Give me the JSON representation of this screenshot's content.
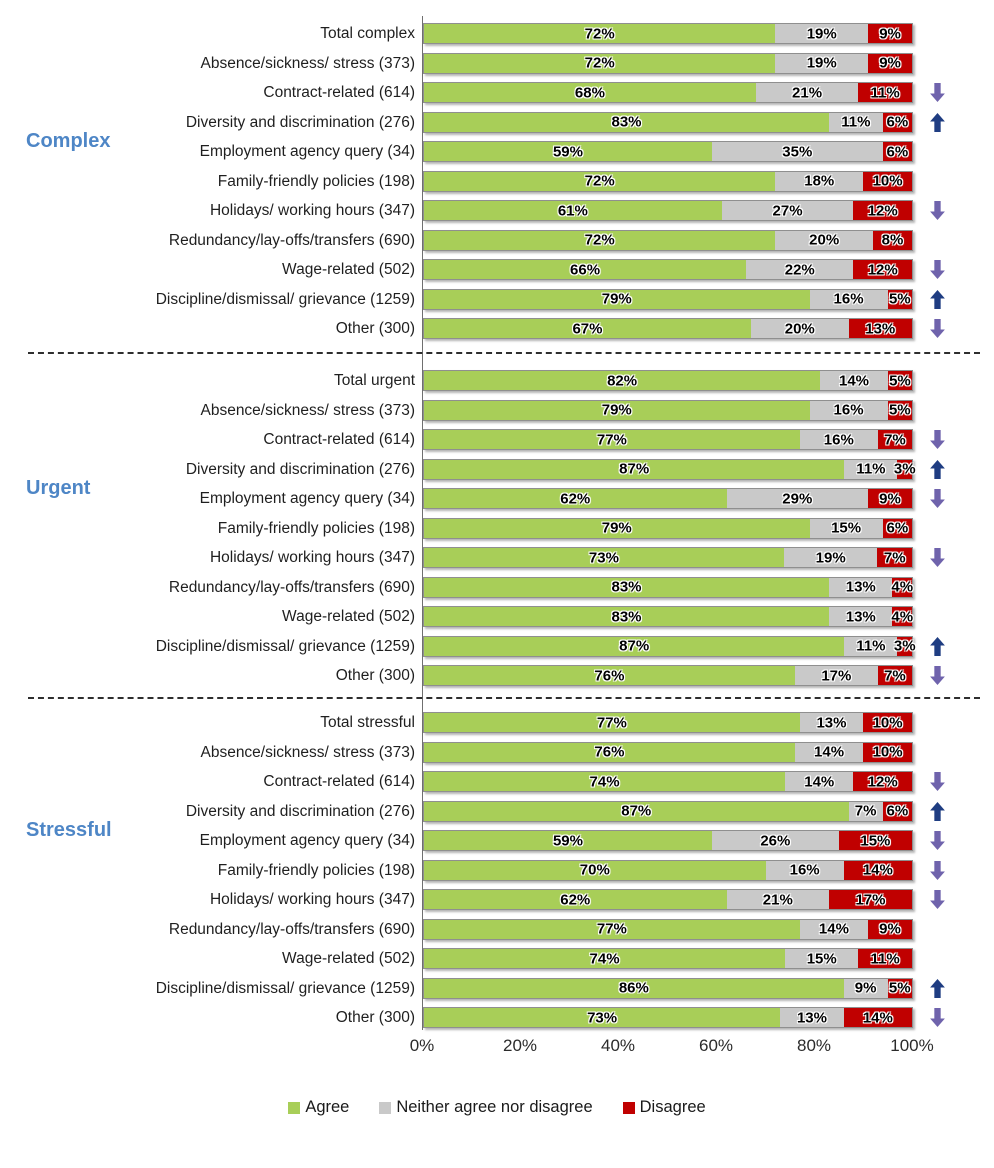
{
  "colors": {
    "agree": "#A8CE58",
    "neither": "#C9C9C9",
    "disagree": "#C00000",
    "arrow_up": "#1F3D82",
    "arrow_down": "#6F63AC",
    "section_label": "#4E86C6"
  },
  "legend": [
    {
      "label": "Agree",
      "color_key": "agree"
    },
    {
      "label": "Neither agree nor disagree",
      "color_key": "neither"
    },
    {
      "label": "Disagree",
      "color_key": "disagree"
    }
  ],
  "chart_data": {
    "type": "bar",
    "stacked": true,
    "orientation": "horizontal",
    "series_names": [
      "Agree",
      "Neither agree nor disagree",
      "Disagree"
    ],
    "xlim": [
      0,
      100
    ],
    "x_ticks": [
      "0%",
      "20%",
      "40%",
      "60%",
      "80%",
      "100%"
    ],
    "groups": [
      {
        "label": "Complex",
        "rows": [
          {
            "category": "Total complex",
            "values": [
              72,
              19,
              9
            ],
            "arrow": "none"
          },
          {
            "category": "Absence/sickness/ stress (373)",
            "values": [
              72,
              19,
              9
            ],
            "arrow": "none"
          },
          {
            "category": "Contract-related (614)",
            "values": [
              68,
              21,
              11
            ],
            "arrow": "down"
          },
          {
            "category": "Diversity and discrimination (276)",
            "values": [
              83,
              11,
              6
            ],
            "arrow": "up"
          },
          {
            "category": "Employment agency query (34)",
            "values": [
              59,
              35,
              6
            ],
            "arrow": "none"
          },
          {
            "category": "Family-friendly policies (198)",
            "values": [
              72,
              18,
              10
            ],
            "arrow": "none"
          },
          {
            "category": "Holidays/ working hours (347)",
            "values": [
              61,
              27,
              12
            ],
            "arrow": "down"
          },
          {
            "category": "Redundancy/lay-offs/transfers (690)",
            "values": [
              72,
              20,
              8
            ],
            "arrow": "none"
          },
          {
            "category": "Wage-related (502)",
            "values": [
              66,
              22,
              12
            ],
            "arrow": "down"
          },
          {
            "category": "Discipline/dismissal/ grievance (1259)",
            "values": [
              79,
              16,
              5
            ],
            "arrow": "up"
          },
          {
            "category": "Other (300)",
            "values": [
              67,
              20,
              13
            ],
            "arrow": "down"
          }
        ]
      },
      {
        "label": "Urgent",
        "rows": [
          {
            "category": "Total urgent",
            "values": [
              82,
              14,
              5
            ],
            "arrow": "none"
          },
          {
            "category": "Absence/sickness/ stress (373)",
            "values": [
              79,
              16,
              5
            ],
            "arrow": "none"
          },
          {
            "category": "Contract-related (614)",
            "values": [
              77,
              16,
              7
            ],
            "arrow": "down"
          },
          {
            "category": "Diversity and discrimination (276)",
            "values": [
              87,
              11,
              3
            ],
            "arrow": "up"
          },
          {
            "category": "Employment agency query (34)",
            "values": [
              62,
              29,
              9
            ],
            "arrow": "down"
          },
          {
            "category": "Family-friendly policies (198)",
            "values": [
              79,
              15,
              6
            ],
            "arrow": "none"
          },
          {
            "category": "Holidays/ working hours (347)",
            "values": [
              73,
              19,
              7
            ],
            "arrow": "down"
          },
          {
            "category": "Redundancy/lay-offs/transfers (690)",
            "values": [
              83,
              13,
              4
            ],
            "arrow": "none"
          },
          {
            "category": "Wage-related (502)",
            "values": [
              83,
              13,
              4
            ],
            "arrow": "none"
          },
          {
            "category": "Discipline/dismissal/ grievance (1259)",
            "values": [
              87,
              11,
              3
            ],
            "arrow": "up"
          },
          {
            "category": "Other (300)",
            "values": [
              76,
              17,
              7
            ],
            "arrow": "down"
          }
        ]
      },
      {
        "label": "Stressful",
        "rows": [
          {
            "category": "Total stressful",
            "values": [
              77,
              13,
              10
            ],
            "arrow": "none"
          },
          {
            "category": "Absence/sickness/ stress (373)",
            "values": [
              76,
              14,
              10
            ],
            "arrow": "none"
          },
          {
            "category": "Contract-related (614)",
            "values": [
              74,
              14,
              12
            ],
            "arrow": "down"
          },
          {
            "category": "Diversity and discrimination (276)",
            "values": [
              87,
              7,
              6
            ],
            "arrow": "up"
          },
          {
            "category": "Employment agency query (34)",
            "values": [
              59,
              26,
              15
            ],
            "arrow": "down"
          },
          {
            "category": "Family-friendly policies (198)",
            "values": [
              70,
              16,
              14
            ],
            "arrow": "down"
          },
          {
            "category": "Holidays/ working hours (347)",
            "values": [
              62,
              21,
              17
            ],
            "arrow": "down"
          },
          {
            "category": "Redundancy/lay-offs/transfers (690)",
            "values": [
              77,
              14,
              9
            ],
            "arrow": "none"
          },
          {
            "category": "Wage-related (502)",
            "values": [
              74,
              15,
              11
            ],
            "arrow": "none"
          },
          {
            "category": "Discipline/dismissal/ grievance (1259)",
            "values": [
              86,
              9,
              5
            ],
            "arrow": "up"
          },
          {
            "category": "Other (300)",
            "values": [
              73,
              13,
              14
            ],
            "arrow": "down"
          }
        ]
      }
    ]
  }
}
